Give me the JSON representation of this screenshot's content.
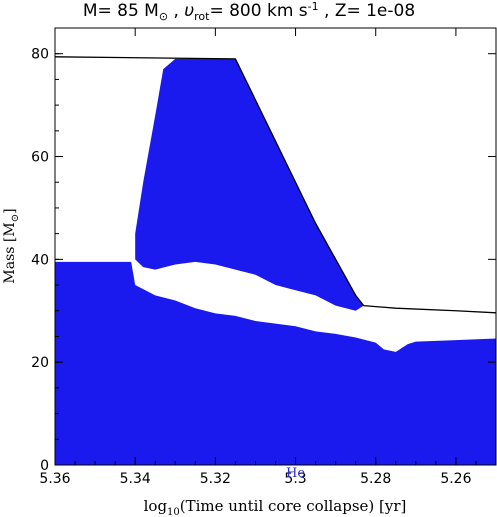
{
  "chart_data": {
    "type": "area",
    "title": {
      "prefix": "M= 85 M",
      "sun_symbol": "⊙",
      "mid": " , ",
      "v": "υ",
      "v_sub": "rot",
      "v_rest": "= 800 km s",
      "v_exp": "-1",
      "z": " , Z= 1e-08"
    },
    "xlabel": {
      "log": "log",
      "log_sub": "10",
      "rest": "(Time until core collapse) [yr]"
    },
    "ylabel": {
      "text": "Mass [M",
      "sun_symbol": "⊙",
      "close": "]"
    },
    "annotation": {
      "text": "He",
      "x": 5.3,
      "y": -2
    },
    "xlim": [
      5.36,
      5.25
    ],
    "ylim": [
      0,
      85
    ],
    "x_ticks": [
      {
        "value": 5.36,
        "label": "5.36"
      },
      {
        "value": 5.34,
        "label": "5.34"
      },
      {
        "value": 5.32,
        "label": "5.32"
      },
      {
        "value": 5.3,
        "label": "5.3"
      },
      {
        "value": 5.28,
        "label": "5.28"
      },
      {
        "value": 5.26,
        "label": "5.26"
      }
    ],
    "y_ticks": [
      {
        "value": 0,
        "label": "0"
      },
      {
        "value": 20,
        "label": "20"
      },
      {
        "value": 40,
        "label": "40"
      },
      {
        "value": 60,
        "label": "60"
      },
      {
        "value": 80,
        "label": "80"
      }
    ],
    "total_mass_line": {
      "x": [
        5.36,
        5.315,
        5.31,
        5.305,
        5.3,
        5.295,
        5.29,
        5.285,
        5.283,
        5.275,
        5.26,
        5.25
      ],
      "y": [
        79.4,
        79.0,
        71.0,
        63.0,
        55.0,
        47.0,
        40.0,
        33.0,
        31.0,
        30.5,
        30.0,
        29.6
      ]
    },
    "convective_core": {
      "x": [
        5.36,
        5.341,
        5.34,
        5.335,
        5.33,
        5.325,
        5.32,
        5.315,
        5.31,
        5.305,
        5.3,
        5.295,
        5.29,
        5.285,
        5.28,
        5.278,
        5.275,
        5.272,
        5.27,
        5.26,
        5.25
      ],
      "y": [
        39.5,
        39.5,
        35.0,
        33.0,
        32.0,
        30.5,
        29.5,
        29.0,
        28.0,
        27.5,
        27.0,
        26.0,
        25.5,
        24.8,
        23.8,
        22.5,
        22.0,
        23.5,
        24.0,
        24.3,
        24.6
      ]
    },
    "convective_envelope": {
      "x": [
        5.34,
        5.338,
        5.335,
        5.333,
        5.33,
        5.325,
        5.32,
        5.315,
        5.31,
        5.305,
        5.3,
        5.295,
        5.29,
        5.287,
        5.285,
        5.283,
        5.285,
        5.29,
        5.295,
        5.3,
        5.305,
        5.31,
        5.315,
        5.32,
        5.325,
        5.33,
        5.335,
        5.338,
        5.34
      ],
      "y": [
        45.0,
        55.0,
        68.0,
        77.0,
        79.0,
        79.0,
        79.0,
        79.0,
        71.0,
        63.0,
        55.0,
        47.0,
        40.0,
        36.0,
        33.0,
        31.0,
        30.0,
        31.0,
        33.0,
        34.0,
        35.0,
        37.0,
        38.0,
        39.0,
        39.5,
        39.0,
        38.0,
        38.5,
        40.0
      ]
    },
    "colors": {
      "convective": "#1a1aee",
      "line": "#000000",
      "annotation": "#2a2ad6"
    }
  }
}
